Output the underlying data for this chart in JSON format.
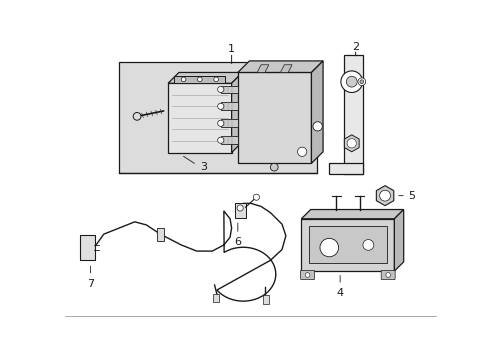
{
  "bg_color": "#ffffff",
  "line_color": "#1a1a1a",
  "fill_light": "#e8e8e8",
  "fill_mid": "#d0d0d0",
  "fig_width": 4.89,
  "fig_height": 3.6,
  "dpi": 100
}
